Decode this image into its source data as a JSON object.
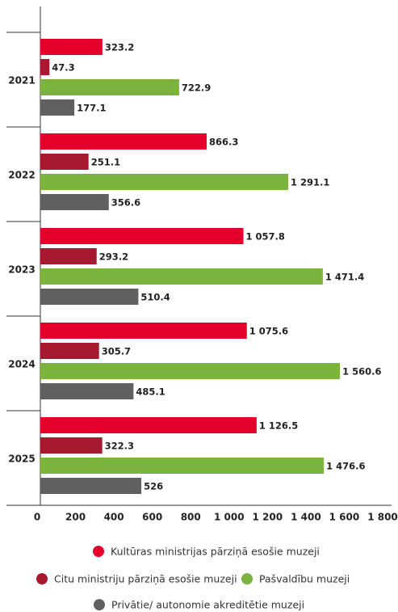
{
  "chart_data": {
    "type": "bar",
    "orientation": "horizontal",
    "categories": [
      "2021",
      "2022",
      "2023",
      "2024",
      "2025"
    ],
    "series": [
      {
        "name": "Kultūras ministrijas pārziņā esošie muzeji",
        "color": "#e4002b",
        "values": [
          323.2,
          866.3,
          1057.8,
          1075.6,
          1126.5
        ],
        "value_labels": [
          "323.2",
          "866.3",
          "1 057.8",
          "1 075.6",
          "1 126.5"
        ]
      },
      {
        "name": "Citu ministriju pārziņā esošie muzeji",
        "color": "#a6192e",
        "values": [
          47.3,
          251.1,
          293.2,
          305.7,
          322.3
        ],
        "value_labels": [
          "47.3",
          "251.1",
          "293.2",
          "305.7",
          "322.3"
        ]
      },
      {
        "name": "Pašvaldību muzeji",
        "color": "#7ab33e",
        "values": [
          722.9,
          1291.1,
          1471.4,
          1560.6,
          1476.6
        ],
        "value_labels": [
          "722.9",
          "1 291.1",
          "1 471.4",
          "1 560.6",
          "1 476.6"
        ]
      },
      {
        "name": "Privātie/ autonomie akreditētie muzeji",
        "color": "#606060",
        "values": [
          177.1,
          356.6,
          510.4,
          485.1,
          526
        ],
        "value_labels": [
          "177.1",
          "356.6",
          "510.4",
          "485.1",
          "526"
        ]
      }
    ],
    "xlim": [
      0,
      1800
    ],
    "xticks": [
      0,
      200,
      400,
      600,
      800,
      {
        "value": 1000,
        "label": "1 000"
      },
      {
        "value": 1200,
        "label": "1 200"
      },
      {
        "value": 1400,
        "label": "1 400"
      },
      {
        "value": 1600,
        "label": "1 600"
      },
      {
        "value": 1800,
        "label": "1 800"
      }
    ],
    "legend": "bottom"
  }
}
